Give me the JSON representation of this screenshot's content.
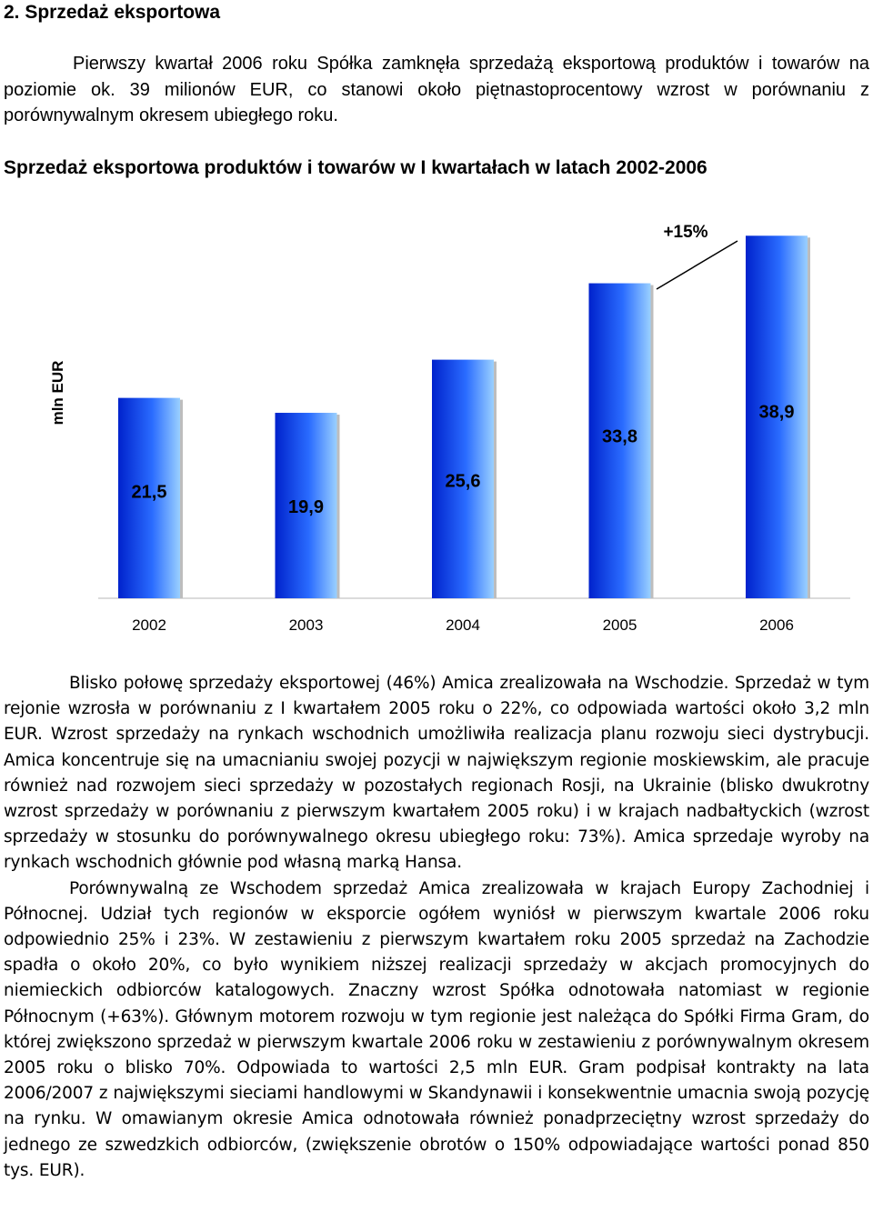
{
  "section_heading": "2. Sprzedaż eksportowa",
  "intro_paragraph": "Pierwszy kwartał 2006 roku Spółka zamknęła sprzedażą eksportową produktów i towarów na poziomie ok. 39 milionów EUR, co stanowi około piętnastoprocentowy wzrost w porównaniu z porównywalnym okresem ubiegłego roku.",
  "chart_title": "Sprzedaż eksportowa produktów i towarów w I kwartałach w latach 2002-2006",
  "chart_data": {
    "type": "bar",
    "categories": [
      "2002",
      "2003",
      "2004",
      "2005",
      "2006"
    ],
    "values": [
      21.5,
      19.9,
      25.6,
      33.8,
      38.9
    ],
    "value_labels": [
      "21,5",
      "19,9",
      "25,6",
      "33,8",
      "38,9"
    ],
    "ylabel": "mln EUR",
    "annotation": "+15%",
    "bar_colors": [
      "#0022cc",
      "#2a6cff",
      "#9ad0ff"
    ],
    "ylim": [
      0,
      40
    ],
    "grid": false
  },
  "body_paragraphs": [
    "Blisko połowę sprzedaży eksportowej (46%) Amica zrealizowała na Wschodzie. Sprzedaż w tym rejonie wzrosła w porównaniu z I kwartałem 2005 roku o 22%, co odpowiada wartości około 3,2 mln EUR. Wzrost sprzedaży na rynkach wschodnich umożliwiła realizacja planu rozwoju sieci dystrybucji. Amica koncentruje się na umacnianiu swojej pozycji w największym regionie moskiewskim, ale pracuje również nad rozwojem sieci sprzedaży w pozostałych regionach Rosji, na Ukrainie (blisko dwukrotny wzrost sprzedaży w porównaniu z pierwszym kwartałem 2005 roku) i w krajach nadbałtyckich (wzrost sprzedaży w stosunku do porównywalnego okresu ubiegłego roku: 73%). Amica sprzedaje wyroby na rynkach wschodnich głównie pod własną marką Hansa.",
    "Porównywalną ze Wschodem sprzedaż Amica zrealizowała w krajach Europy Zachodniej i Północnej. Udział tych regionów w eksporcie ogółem wyniósł w pierwszym kwartale 2006 roku odpowiednio 25% i 23%. W zestawieniu z pierwszym kwartałem roku 2005 sprzedaż na Zachodzie spadła o około 20%, co było wynikiem niższej realizacji sprzedaży w akcjach promocyjnych do niemieckich odbiorców katalogowych. Znaczny wzrost Spółka odnotowała natomiast w regionie Północnym (+63%). Głównym motorem rozwoju w tym regionie jest należąca do Spółki Firma Gram, do której zwiększono sprzedaż w pierwszym kwartale 2006 roku w zestawieniu z porównywalnym okresem 2005 roku o blisko 70%. Odpowiada to wartości 2,5 mln EUR. Gram podpisał kontrakty na lata 2006/2007 z największymi sieciami handlowymi w Skandynawii i konsekwentnie umacnia swoją pozycję na rynku. W omawianym okresie Amica odnotowała również ponadprzeciętny wzrost sprzedaży do jednego ze szwedzkich odbiorców, (zwiększenie obrotów o 150% odpowiadające wartości ponad 850 tys. EUR)."
  ]
}
